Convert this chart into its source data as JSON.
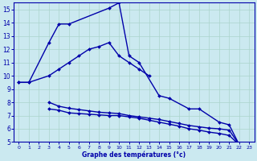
{
  "title": "Graphe des températures (°c)",
  "bg_color": "#cbe9f0",
  "grid_color": "#aad4cc",
  "line_color": "#0000aa",
  "marker": "D",
  "markersize": 2.0,
  "linewidth": 1.0,
  "xlim": [
    -0.5,
    23.5
  ],
  "ylim": [
    5,
    15.5
  ],
  "yticks": [
    5,
    6,
    7,
    8,
    9,
    10,
    11,
    12,
    13,
    14,
    15
  ],
  "xticks": [
    0,
    1,
    2,
    3,
    4,
    5,
    6,
    7,
    8,
    9,
    10,
    11,
    12,
    13,
    14,
    15,
    16,
    17,
    18,
    19,
    20,
    21,
    22,
    23
  ],
  "curve1_x": [
    0,
    1,
    3,
    4,
    5,
    9,
    10,
    11,
    12,
    14,
    15,
    17,
    18,
    20,
    21,
    22,
    23
  ],
  "curve1_y": [
    9.5,
    9.5,
    12.5,
    13.9,
    13.9,
    15.1,
    15.5,
    11.5,
    11.0,
    8.5,
    8.3,
    7.5,
    7.5,
    6.5,
    6.3,
    4.8,
    4.7
  ],
  "curve2_x": [
    0,
    1,
    3,
    4,
    5,
    6,
    7,
    8,
    9,
    10,
    11,
    12,
    13
  ],
  "curve2_y": [
    9.5,
    9.5,
    10.0,
    10.5,
    11.0,
    11.5,
    12.0,
    12.2,
    12.5,
    11.5,
    11.0,
    10.5,
    10.0
  ],
  "curve3_x": [
    3,
    4,
    5,
    6,
    7,
    8,
    9,
    10,
    11,
    12,
    13,
    14,
    15,
    16,
    17,
    18,
    19,
    20,
    21,
    22,
    23
  ],
  "curve3_y": [
    7.5,
    7.4,
    7.2,
    7.15,
    7.1,
    7.05,
    7.0,
    7.0,
    6.9,
    6.8,
    6.65,
    6.5,
    6.35,
    6.2,
    6.0,
    5.9,
    5.75,
    5.65,
    5.5,
    4.8,
    4.7
  ],
  "curve4_x": [
    3,
    4,
    5,
    6,
    7,
    8,
    9,
    10,
    11,
    12,
    13,
    14,
    15,
    16,
    17,
    18,
    19,
    20,
    21,
    22,
    23
  ],
  "curve4_y": [
    8.0,
    7.7,
    7.55,
    7.45,
    7.35,
    7.25,
    7.2,
    7.15,
    7.0,
    6.9,
    6.8,
    6.7,
    6.55,
    6.4,
    6.25,
    6.15,
    6.05,
    6.0,
    5.9,
    4.8,
    4.7
  ]
}
